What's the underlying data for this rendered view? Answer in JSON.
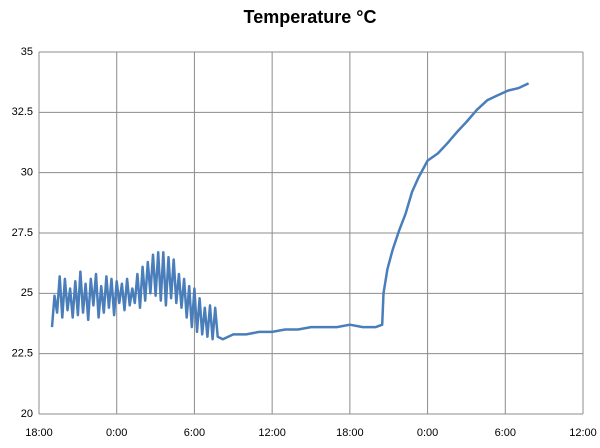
{
  "chart_data": {
    "type": "line",
    "title": "Temperature °C",
    "x": [
      1.0,
      1.2,
      1.4,
      1.6,
      1.8,
      2.0,
      2.2,
      2.4,
      2.6,
      2.8,
      3.0,
      3.2,
      3.4,
      3.6,
      3.8,
      4.0,
      4.2,
      4.4,
      4.6,
      4.8,
      5.0,
      5.2,
      5.4,
      5.6,
      5.8,
      6.0,
      6.2,
      6.4,
      6.6,
      6.8,
      7.0,
      7.2,
      7.4,
      7.6,
      7.8,
      8.0,
      8.2,
      8.4,
      8.6,
      8.8,
      9.0,
      9.2,
      9.4,
      9.6,
      9.8,
      10.0,
      10.2,
      10.4,
      10.6,
      10.8,
      11.0,
      11.2,
      11.4,
      11.6,
      11.8,
      12.0,
      12.2,
      12.4,
      12.6,
      12.8,
      13.0,
      13.2,
      13.4,
      13.6,
      13.8,
      14.2,
      15,
      16,
      17,
      18,
      19,
      20,
      21,
      22,
      23,
      24,
      25,
      26,
      26.5,
      26.6,
      26.9,
      27.3,
      27.8,
      28.3,
      28.8,
      29.3,
      30.0,
      30.8,
      31.5,
      32.3,
      33.0,
      33.8,
      34.6,
      35.4,
      36.2,
      37.0,
      37.8
    ],
    "series": [
      {
        "name": "Temperature",
        "color": "#4a7ebb",
        "values": [
          23.6,
          24.9,
          24.2,
          25.7,
          24.0,
          25.6,
          24.3,
          25.2,
          24.0,
          25.5,
          24.1,
          25.9,
          24.2,
          25.4,
          23.9,
          25.6,
          24.5,
          25.8,
          24.0,
          25.3,
          24.2,
          25.7,
          24.4,
          25.6,
          24.1,
          25.5,
          24.6,
          25.4,
          24.3,
          25.6,
          24.5,
          25.2,
          24.6,
          25.8,
          24.4,
          26.1,
          24.7,
          26.3,
          25.0,
          26.6,
          24.9,
          26.7,
          24.7,
          26.7,
          24.5,
          26.5,
          24.8,
          26.4,
          24.6,
          25.8,
          24.4,
          25.6,
          24.0,
          25.3,
          23.6,
          25.2,
          23.4,
          24.8,
          23.3,
          24.4,
          23.2,
          24.5,
          23.1,
          24.4,
          23.2,
          23.1,
          23.3,
          23.3,
          23.4,
          23.4,
          23.5,
          23.5,
          23.6,
          23.6,
          23.6,
          23.7,
          23.6,
          23.6,
          23.7,
          25.0,
          26.0,
          26.8,
          27.6,
          28.3,
          29.2,
          29.8,
          30.5,
          30.8,
          31.2,
          31.7,
          32.1,
          32.6,
          33.0,
          33.2,
          33.4,
          33.5,
          33.7
        ]
      }
    ],
    "xlim": [
      0,
      42
    ],
    "xticks": [
      {
        "value": 0,
        "label": "18:00"
      },
      {
        "value": 6,
        "label": "0:00"
      },
      {
        "value": 12,
        "label": "6:00"
      },
      {
        "value": 18,
        "label": "12:00"
      },
      {
        "value": 24,
        "label": "18:00"
      },
      {
        "value": 30,
        "label": "0:00"
      },
      {
        "value": 36,
        "label": "6:00"
      },
      {
        "value": 42,
        "label": "12:00"
      }
    ],
    "ylim": [
      20,
      35
    ],
    "yticks": [
      20,
      22.5,
      25,
      27.5,
      30,
      32.5,
      35
    ],
    "grid": true
  }
}
